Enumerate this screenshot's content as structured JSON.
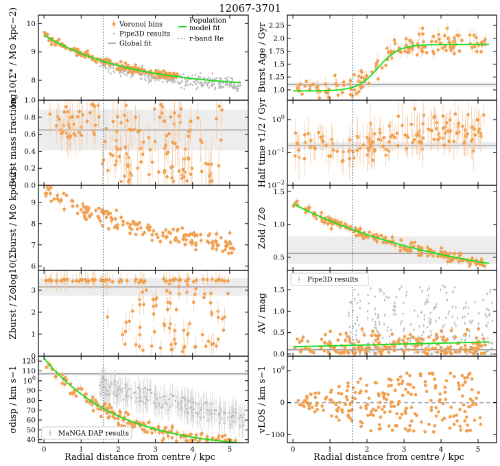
{
  "figure": {
    "title": "12067-3701",
    "xlabel": "Radial distance from centre / kpc",
    "effective_radius_kpc": 1.6
  },
  "colors": {
    "orange": "#f0a050",
    "grey": "#b4b4b4",
    "green": "#22dd22",
    "global": "#888888",
    "band": "#ededed",
    "re_line": "#1f77b4"
  },
  "chart_data": [
    {
      "id": "surface_density",
      "type": "scatter",
      "ylabel": "log10(Σ* / M⊙ kpc−2)",
      "xlim": [
        -0.15,
        5.5
      ],
      "ylim": [
        7.3,
        10.3
      ],
      "yscale": "linear",
      "yticks": [
        {
          "v": 8,
          "t": "8"
        },
        {
          "v": 9,
          "t": "9"
        },
        {
          "v": 10,
          "t": "10"
        }
      ],
      "xticks": [],
      "global_fit": null,
      "fit_kind": "exp",
      "fit": {
        "a": 9.6,
        "b": 7.72,
        "r0": 2.35,
        "c": 0,
        "d": 0
      },
      "voronoi": {
        "kind": "exp",
        "a": 9.6,
        "b": 7.72,
        "r0": 2.35,
        "c": 0,
        "d": 0,
        "scatter": 0.07,
        "n": 190,
        "xmax": 3.6,
        "err": 0.05
      },
      "grey_points": {
        "kind": "exp",
        "a": 9.5,
        "b": 7.65,
        "r0": 2.3,
        "c": 0,
        "d": 0,
        "scatter": 0.12,
        "n": 330,
        "xmin": 1.5,
        "xmax": 5.3,
        "err": 0.05
      },
      "legend": {
        "location": "upper-right",
        "entries": [
          {
            "key": "voronoi",
            "label": "Voronoi bins"
          },
          {
            "key": "grey",
            "label": "Pipe3D results"
          },
          {
            "key": "global",
            "label": "Global fit"
          },
          {
            "key": "fit",
            "label": "Population"
          },
          {
            "key": "fit_sub",
            "label": "model fit"
          },
          {
            "key": "re",
            "label": "r-band Re"
          }
        ]
      }
    },
    {
      "id": "burst_age",
      "type": "scatter",
      "ylabel": "Burst Age / Gyr",
      "xlim": [
        -0.15,
        5.5
      ],
      "ylim": [
        0.8,
        2.45
      ],
      "yscale": "linear",
      "yticks": [
        {
          "v": 1,
          "t": "1.0"
        },
        {
          "v": 1.25,
          "t": "1.25"
        },
        {
          "v": 1.5,
          "t": "1.5"
        },
        {
          "v": 1.75,
          "t": "1.75"
        },
        {
          "v": 2,
          "t": "2.0"
        },
        {
          "v": 2.25,
          "t": "2.25"
        }
      ],
      "xticks": [],
      "global_fit": {
        "value": 1.1,
        "band": [
          1.05,
          1.15
        ]
      },
      "fit_kind": "sigmoid",
      "fit": {
        "a": 0.98,
        "b": 1.88,
        "r0": 2.3,
        "c": 0.28,
        "d": 0
      },
      "voronoi": {
        "kind": "sigmoid",
        "a": 0.98,
        "b": 1.88,
        "r0": 2.3,
        "c": 0.28,
        "d": 0,
        "scatter": 0.12,
        "n": 150,
        "xmax": 5.2,
        "err": 0.1
      },
      "grey_points": null,
      "legend": null
    },
    {
      "id": "burst_mass_fraction",
      "type": "scatter",
      "ylabel": "Burst mass fraction",
      "xlim": [
        -0.15,
        5.5
      ],
      "ylim": [
        0.0,
        1.0
      ],
      "yscale": "linear",
      "yticks": [
        {
          "v": 0,
          "t": "0.0"
        },
        {
          "v": 0.2,
          "t": "0.2"
        },
        {
          "v": 0.4,
          "t": "0.4"
        },
        {
          "v": 0.6,
          "t": "0.6"
        },
        {
          "v": 0.8,
          "t": "0.8"
        },
        {
          "v": 1,
          "t": "1.0"
        }
      ],
      "xticks": [],
      "global_fit": {
        "value": 0.65,
        "band": [
          0.41,
          0.89
        ]
      },
      "fit_kind": null,
      "fit": null,
      "voronoi": {
        "kind": "uniform",
        "lo": 0.04,
        "hi": 0.95,
        "n": 150,
        "xmax": 4.8,
        "err": 0.2
      },
      "grey_points": null,
      "legend": null
    },
    {
      "id": "half_time",
      "type": "scatter",
      "ylabel": "Half time τ1/2 / Gyr",
      "xlim": [
        -0.15,
        5.5
      ],
      "ylim": [
        -2,
        0.6
      ],
      "yscale": "log",
      "yticks": [
        {
          "v": -2,
          "t": "10−2"
        },
        {
          "v": -1,
          "t": "10−1"
        },
        {
          "v": 0,
          "t": "100"
        }
      ],
      "xticks": [],
      "global_fit": {
        "value": -0.78,
        "band": [
          -0.9,
          -0.68
        ]
      },
      "fit_kind": null,
      "fit": null,
      "voronoi": {
        "kind": "sigmoid",
        "a": -0.85,
        "b": -0.35,
        "r0": 2.5,
        "c": 0.3,
        "d": 0,
        "scatter": 0.28,
        "n": 150,
        "xmax": 5.2,
        "err": 0.5
      },
      "grey_points": null,
      "legend": null
    },
    {
      "id": "burst_surface_density",
      "type": "scatter",
      "ylabel": "log10(Σburst / M⊙ kpc−2)",
      "xlim": [
        -0.15,
        5.5
      ],
      "ylim": [
        5.8,
        9.8
      ],
      "yscale": "linear",
      "yticks": [
        {
          "v": 6,
          "t": "6"
        },
        {
          "v": 7,
          "t": "7"
        },
        {
          "v": 8,
          "t": "8"
        },
        {
          "v": 9,
          "t": "9"
        }
      ],
      "xticks": [],
      "global_fit": null,
      "fit_kind": null,
      "fit": null,
      "voronoi": {
        "kind": "exp",
        "a": 9.6,
        "b": 6.2,
        "r0": 3.3,
        "c": 0,
        "d": 0,
        "scatter": 0.22,
        "n": 170,
        "xmax": 5.2,
        "err": 0.15
      },
      "grey_points": null,
      "legend": null
    },
    {
      "id": "old_metallicity",
      "type": "scatter",
      "ylabel": "Zold / Z⊙",
      "xlim": [
        -0.15,
        5.5
      ],
      "ylim": [
        0.3,
        1.6
      ],
      "yscale": "linear",
      "yticks": [
        {
          "v": 0.5,
          "t": "0.5"
        },
        {
          "v": 1,
          "t": "1.0"
        },
        {
          "v": 1.5,
          "t": "1.5"
        }
      ],
      "xticks": [],
      "global_fit": {
        "value": 0.56,
        "band": [
          0.4,
          0.82
        ]
      },
      "fit_kind": "exp",
      "fit": {
        "a": 1.32,
        "b": 0.0,
        "r0": 4.5,
        "c": 0,
        "d": 0
      },
      "voronoi": {
        "kind": "exp",
        "a": 1.32,
        "b": 0.0,
        "r0": 4.5,
        "c": 0,
        "d": 0,
        "scatter": 0.04,
        "n": 190,
        "xmax": 5.2,
        "err": 0.05
      },
      "grey_points": null,
      "legend": null
    },
    {
      "id": "burst_metallicity",
      "type": "scatter",
      "ylabel": "Zburst / Z⊙",
      "xlim": [
        -0.15,
        5.5
      ],
      "ylim": [
        0.0,
        3.9
      ],
      "yscale": "linear",
      "yticks": [
        {
          "v": 0,
          "t": "0"
        },
        {
          "v": 1,
          "t": "1"
        },
        {
          "v": 2,
          "t": "2"
        },
        {
          "v": 3,
          "t": "3"
        }
      ],
      "xticks": [],
      "global_fit": {
        "value": 3.15,
        "band": [
          2.75,
          3.55
        ]
      },
      "fit_kind": null,
      "fit": null,
      "voronoi": {
        "kind": "uniform",
        "lo": 0.2,
        "hi": 3.55,
        "n": 160,
        "xmax": 5.0,
        "err": 0.35
      },
      "grey_points": null,
      "legend": null
    },
    {
      "id": "attenuation",
      "type": "scatter",
      "ylabel": "AV / mag",
      "xlim": [
        -0.15,
        5.5
      ],
      "ylim": [
        -0.05,
        1.95
      ],
      "yscale": "linear",
      "yticks": [
        {
          "v": 0,
          "t": "0.0"
        },
        {
          "v": 0.5,
          "t": "0.5"
        },
        {
          "v": 1,
          "t": "1.0"
        },
        {
          "v": 1.5,
          "t": "1.5"
        }
      ],
      "xticks": [],
      "global_fit": {
        "value": 0.1,
        "band": [
          0.07,
          0.13
        ]
      },
      "fit_kind": "linear",
      "fit": {
        "a": 0.17,
        "b": 0.021,
        "r0": 0,
        "c": 0,
        "d": 0
      },
      "voronoi": {
        "kind": "uniform",
        "lo": 0.0,
        "hi": 0.55,
        "n": 200,
        "xmax": 5.2,
        "err": 0.05
      },
      "grey_points": {
        "kind": "uniform",
        "lo": 0.0,
        "hi": 1.6,
        "n": 300,
        "xmin": 1.5,
        "xmax": 5.4,
        "err": 0.05
      },
      "legend": {
        "location": "upper-left",
        "entries": [
          {
            "key": "grey",
            "label": "Pipe3D results"
          }
        ]
      }
    },
    {
      "id": "velocity_dispersion",
      "type": "scatter",
      "ylabel": "σdisp / km s−1",
      "xlim": [
        -0.15,
        5.5
      ],
      "ylim": [
        37,
        125
      ],
      "yscale": "linear",
      "yticks": [
        {
          "v": 40,
          "t": "40"
        },
        {
          "v": 50,
          "t": "50"
        },
        {
          "v": 60,
          "t": "60"
        },
        {
          "v": 70,
          "t": "70"
        },
        {
          "v": 80,
          "t": "80"
        },
        {
          "v": 90,
          "t": "90"
        },
        {
          "v": 100,
          "t": "100"
        },
        {
          "v": 110,
          "t": "110"
        },
        {
          "v": 120,
          "t": "120"
        }
      ],
      "xticks": [
        {
          "v": 0,
          "t": "0"
        },
        {
          "v": 1,
          "t": "1"
        },
        {
          "v": 2,
          "t": "2"
        },
        {
          "v": 3,
          "t": "3"
        },
        {
          "v": 4,
          "t": "4"
        },
        {
          "v": 5,
          "t": "5"
        }
      ],
      "global_fit": {
        "value": 107,
        "band": [
          105.5,
          108.5
        ]
      },
      "fit_kind": "exp",
      "fit": {
        "a": 123,
        "b": 30,
        "r0": 2.0,
        "c": 0,
        "d": 0
      },
      "voronoi": {
        "kind": "exp",
        "a": 121,
        "b": 30,
        "r0": 2.0,
        "c": 0,
        "d": 0,
        "scatter": 4,
        "n": 170,
        "xmax": 5.2,
        "err": 4
      },
      "grey_points": {
        "kind": "uniform",
        "lo": 45,
        "hi": 100,
        "n": 260,
        "xmin": 1.5,
        "xmax": 5.4,
        "err": 12
      },
      "legend": {
        "location": "lower-left",
        "entries": [
          {
            "key": "grey",
            "label": "MaNGA DAP results"
          }
        ]
      }
    },
    {
      "id": "los_velocity",
      "type": "scatter",
      "ylabel": "vLOS / km s−1",
      "xlim": [
        -0.15,
        5.5
      ],
      "ylim": [
        -125,
        145
      ],
      "yscale": "linear",
      "yticks": [
        {
          "v": -100,
          "t": "−100"
        },
        {
          "v": 0,
          "t": "0"
        },
        {
          "v": 100,
          "t": "100"
        }
      ],
      "xticks": [
        {
          "v": 0,
          "t": "0"
        },
        {
          "v": 1,
          "t": "1"
        },
        {
          "v": 2,
          "t": "2"
        },
        {
          "v": 3,
          "t": "3"
        },
        {
          "v": 4,
          "t": "4"
        },
        {
          "v": 5,
          "t": "5"
        }
      ],
      "global_fit": {
        "value": 0,
        "band": null
      },
      "fit_kind": null,
      "fit": null,
      "voronoi": {
        "kind": "fan",
        "amp": 85,
        "xsat": 2.2,
        "n": 230,
        "xmax": 5.1,
        "err": 4
      },
      "grey_points": null,
      "legend": null
    }
  ]
}
